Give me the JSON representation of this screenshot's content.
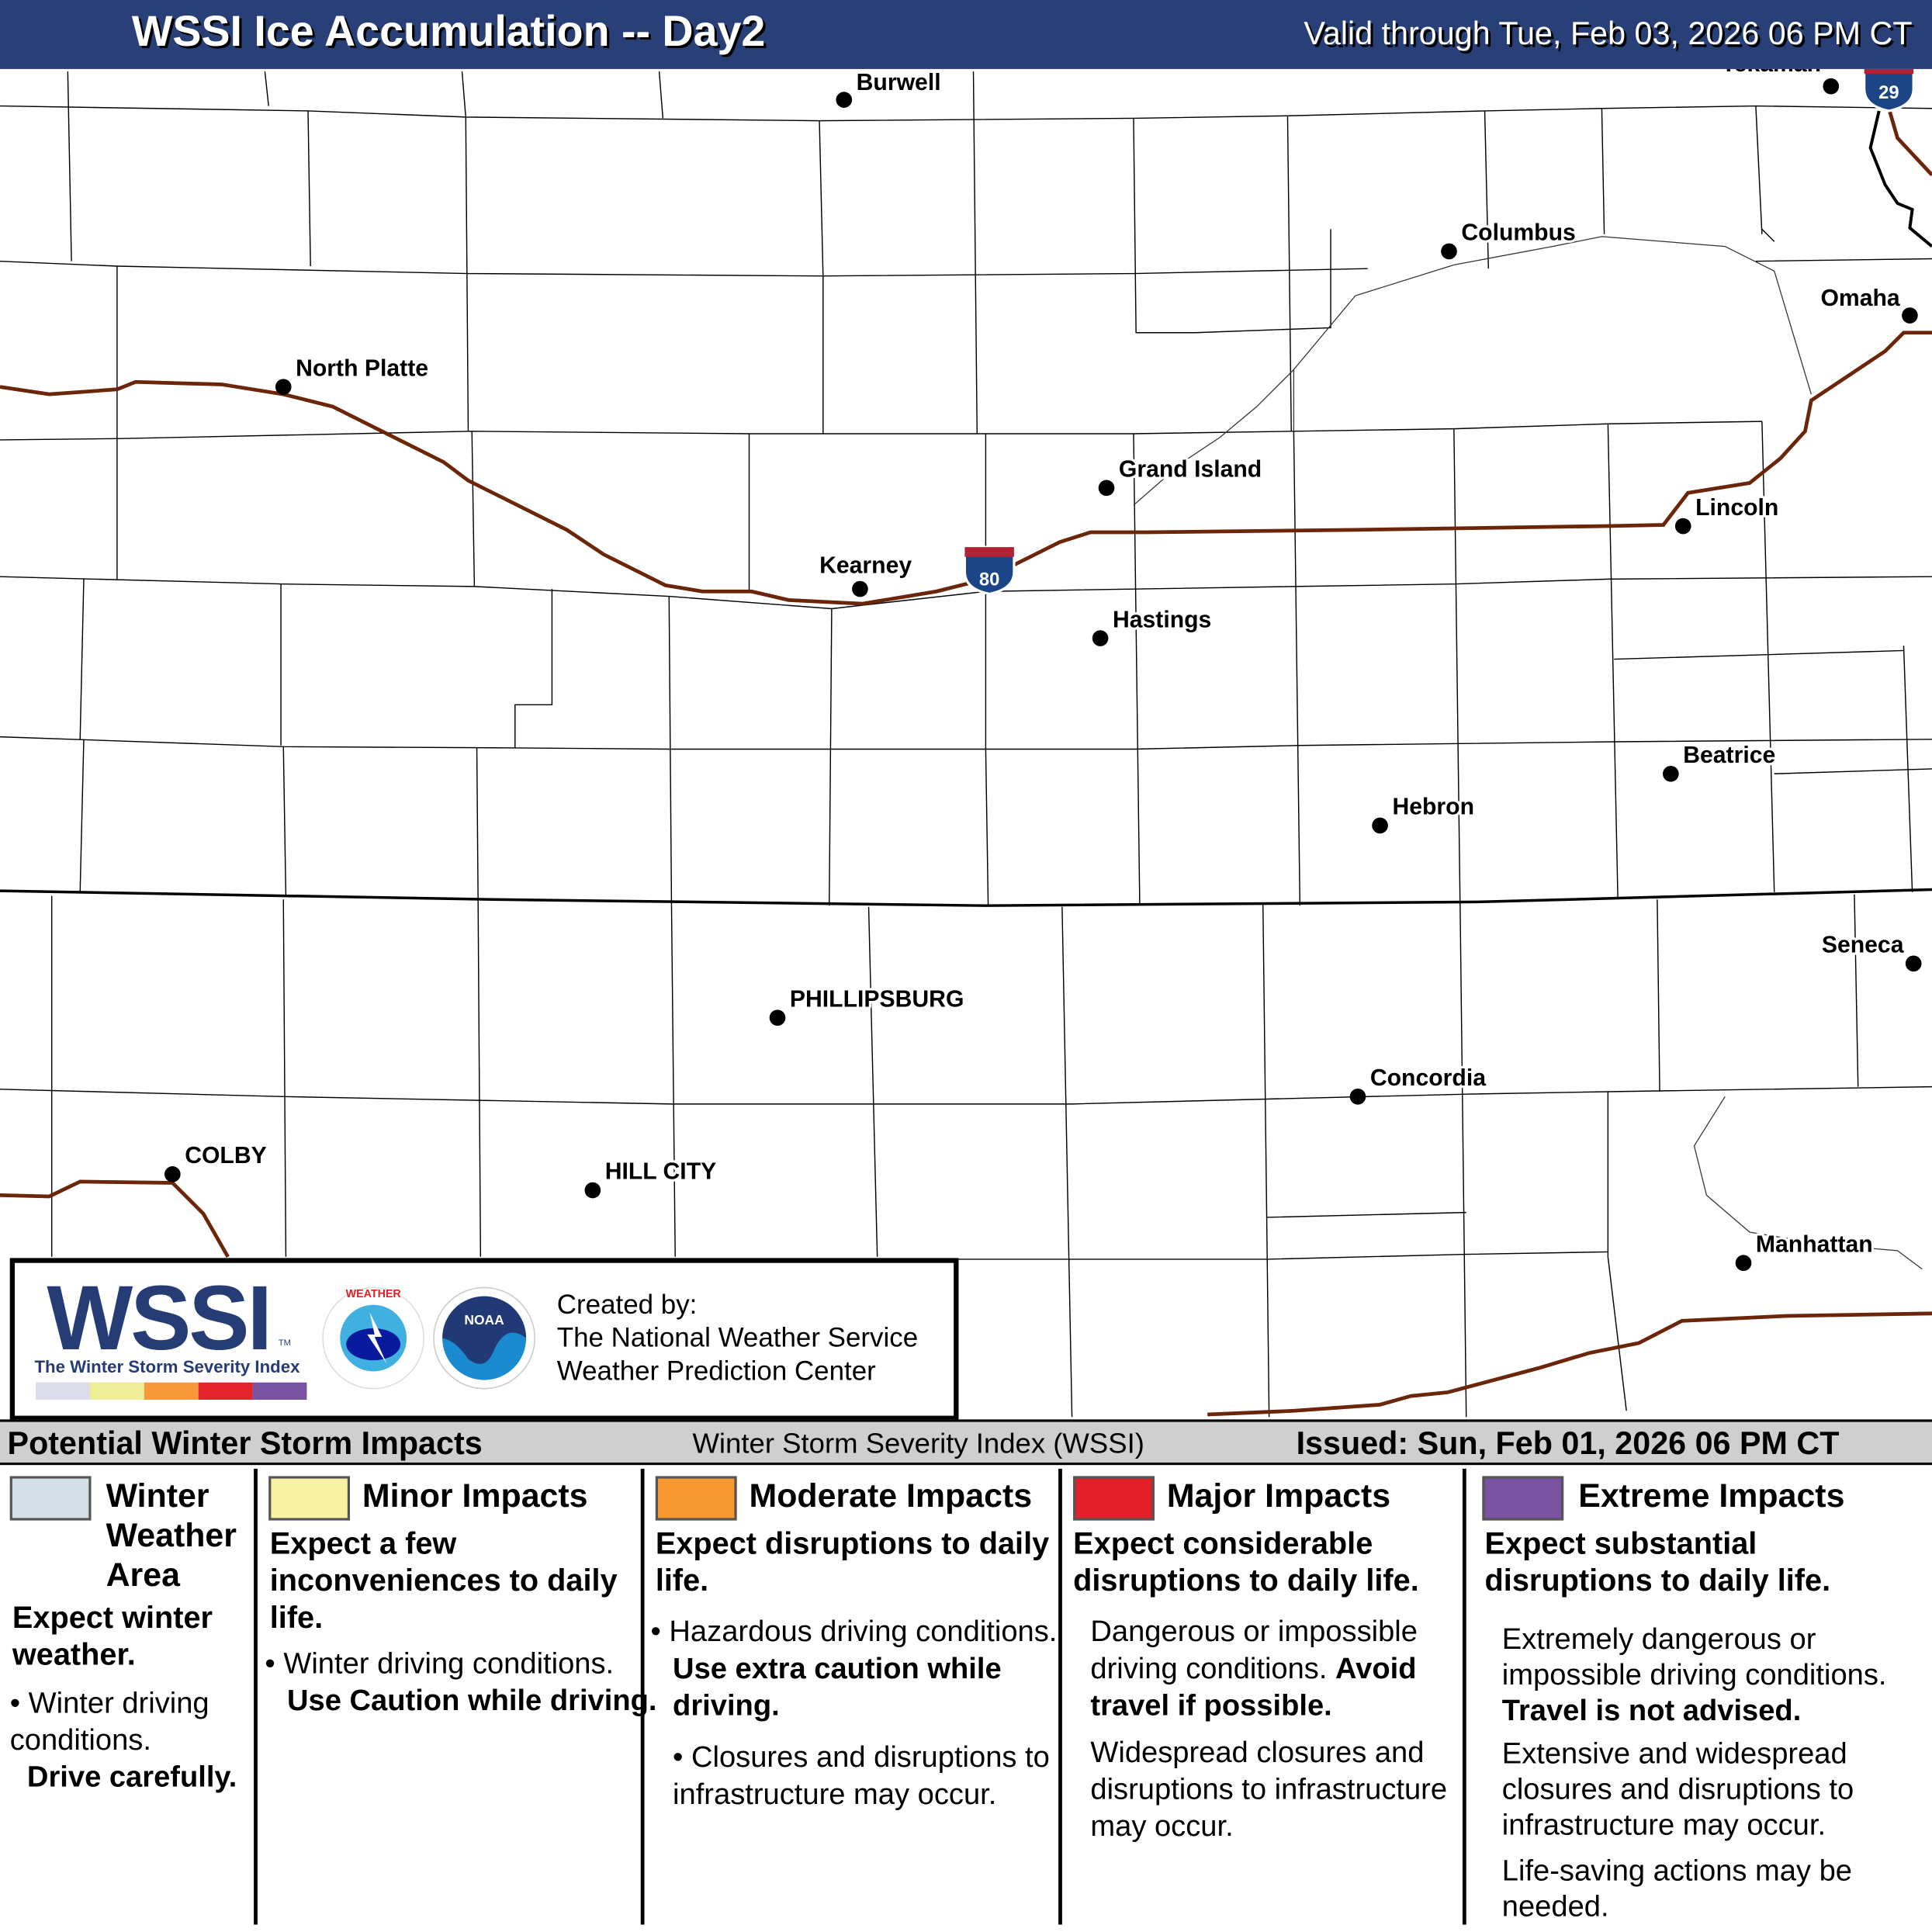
{
  "header": {
    "title": "WSSI Ice Accumulation -- Day2",
    "valid": "Valid through Tue, Feb 03, 2026 06 PM CT"
  },
  "map": {
    "cities": [
      {
        "name": "Burwell"
      },
      {
        "name": "Tekamah"
      },
      {
        "name": "Columbus"
      },
      {
        "name": "Omaha"
      },
      {
        "name": "North Platte"
      },
      {
        "name": "Grand Island"
      },
      {
        "name": "Lincoln"
      },
      {
        "name": "Kearney"
      },
      {
        "name": "Hastings"
      },
      {
        "name": "Beatrice"
      },
      {
        "name": "Hebron"
      },
      {
        "name": "Seneca"
      },
      {
        "name": "PHILLIPSBURG"
      },
      {
        "name": "Concordia"
      },
      {
        "name": "COLBY"
      },
      {
        "name": "HILL CITY"
      },
      {
        "name": "Manhattan"
      }
    ],
    "shields": [
      {
        "route": "80"
      },
      {
        "route": "29"
      }
    ],
    "colors": {
      "interstate": "#6b2508",
      "county": "#000000",
      "shield_blue": "#1c4587",
      "shield_red": "#b22234"
    }
  },
  "logo_box": {
    "wssi": "WSSI",
    "tm": "TM",
    "subtitle": "The Winter Storm Severity Index",
    "bar_colors": [
      "#dcdcea",
      "#eded96",
      "#f7993a",
      "#e3242b",
      "#7b52a2"
    ],
    "nws_text": "NATIONAL WEATHER SERVICE",
    "noaa_text": "NOAA",
    "created_by": "Created by:",
    "org1": "The National Weather Service",
    "org2": "Weather Prediction Center"
  },
  "legend": {
    "title": "Potential Winter Storm Impacts",
    "index": "Winter Storm Severity Index (WSSI)",
    "issued": "Issued: Sun, Feb 01, 2026 06 PM CT",
    "categories": [
      {
        "color": "#d4e0e8",
        "name_lines": [
          "Winter",
          "Weather",
          "Area"
        ],
        "summary": "Expect winter weather.",
        "bullets": [
          "Winter driving conditions."
        ],
        "bold": "Drive carefully."
      },
      {
        "color": "#f7f3a3",
        "name": "Minor Impacts",
        "summary": "Expect a few inconveniences to daily life.",
        "bullets": [
          "Winter driving conditions."
        ],
        "bold": "Use Caution while driving."
      },
      {
        "color": "#f7992e",
        "name": "Moderate Impacts",
        "summary": "Expect disruptions to daily life.",
        "bullets": [
          "Hazardous driving conditions.",
          "Closures and disruptions to infrastructure may occur."
        ],
        "bold": "Use extra caution while driving."
      },
      {
        "color": "#e3202a",
        "name": "Major Impacts",
        "summary": "Expect considerable disruptions to daily life.",
        "text1": "Dangerous or impossible driving conditions.",
        "bold": "Avoid travel if possible.",
        "text2": "Widespread closures and disruptions to infrastructure may occur."
      },
      {
        "color": "#7b52a2",
        "name": "Extreme Impacts",
        "summary": "Expect substantial disruptions to daily life.",
        "text1": "Extremely dangerous or impossible driving conditions.",
        "bold": "Travel is not advised.",
        "text2": "Extensive and widespread closures and disruptions to infrastructure may occur.",
        "text3": "Life-saving actions may be needed."
      }
    ]
  }
}
